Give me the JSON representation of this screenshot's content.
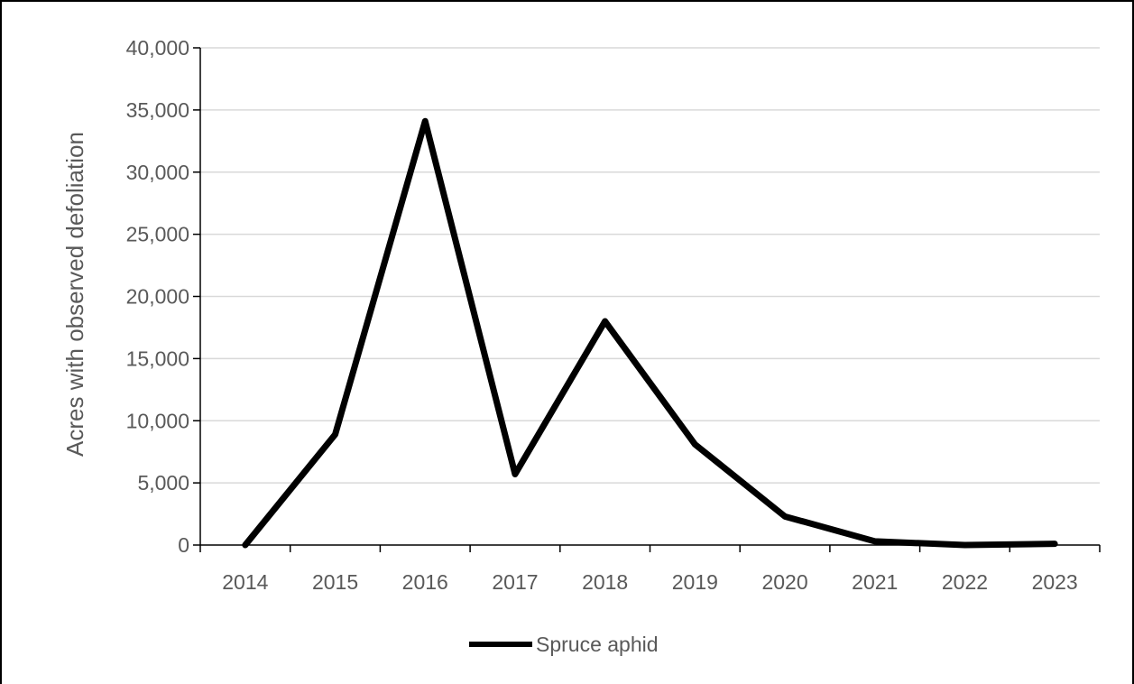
{
  "chart_data": {
    "type": "line",
    "title": "",
    "xlabel": "",
    "ylabel": "Acres with observed defoliation",
    "categories": [
      "2014",
      "2015",
      "2016",
      "2017",
      "2018",
      "2019",
      "2020",
      "2021",
      "2022",
      "2023"
    ],
    "series": [
      {
        "name": "Spruce aphid",
        "values": [
          0,
          8900,
          34100,
          5700,
          18000,
          8100,
          2300,
          300,
          0,
          100
        ]
      }
    ],
    "ylim": [
      0,
      40000
    ],
    "yticks": [
      "0",
      "5,000",
      "10,000",
      "15,000",
      "20,000",
      "25,000",
      "30,000",
      "35,000",
      "40,000"
    ],
    "ytick_values": [
      0,
      5000,
      10000,
      15000,
      20000,
      25000,
      30000,
      35000,
      40000
    ],
    "grid": true,
    "legend_position": "bottom",
    "colors": {
      "line": "#000000",
      "grid": "#d9d9d9",
      "axis": "#000000",
      "text": "#595959"
    }
  }
}
